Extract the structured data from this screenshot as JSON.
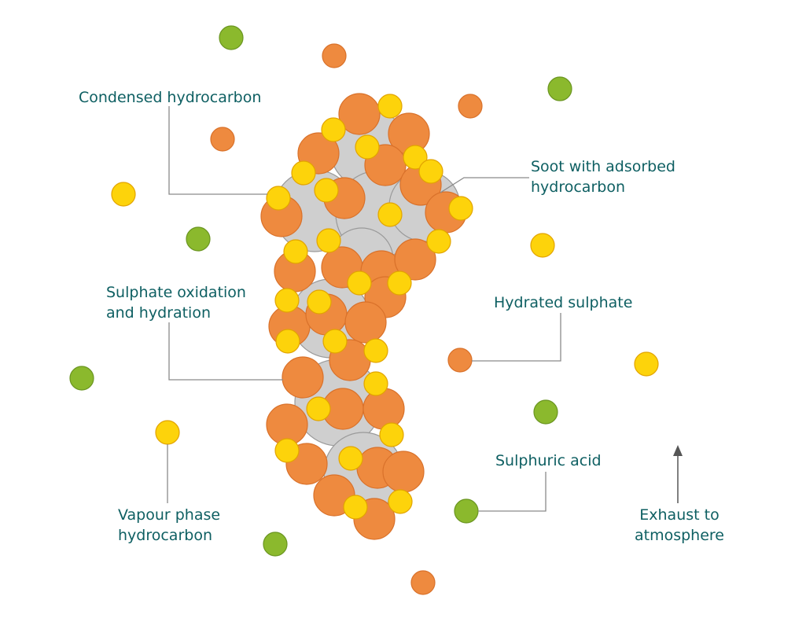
{
  "labels": [
    {
      "lines": [
        "Condensed hydrocarbon"
      ]
    },
    {
      "lines": [
        "Soot with adsorbed",
        "hydrocarbon"
      ]
    },
    {
      "lines": [
        "Sulphate oxidation",
        "and hydration"
      ]
    },
    {
      "lines": [
        "Hydrated sulphate"
      ]
    },
    {
      "lines": [
        "Sulphuric acid"
      ]
    },
    {
      "lines": [
        "Vapour phase",
        "hydrocarbon"
      ]
    },
    {
      "lines": [
        "Exhaust to",
        "atmosphere"
      ]
    }
  ]
}
